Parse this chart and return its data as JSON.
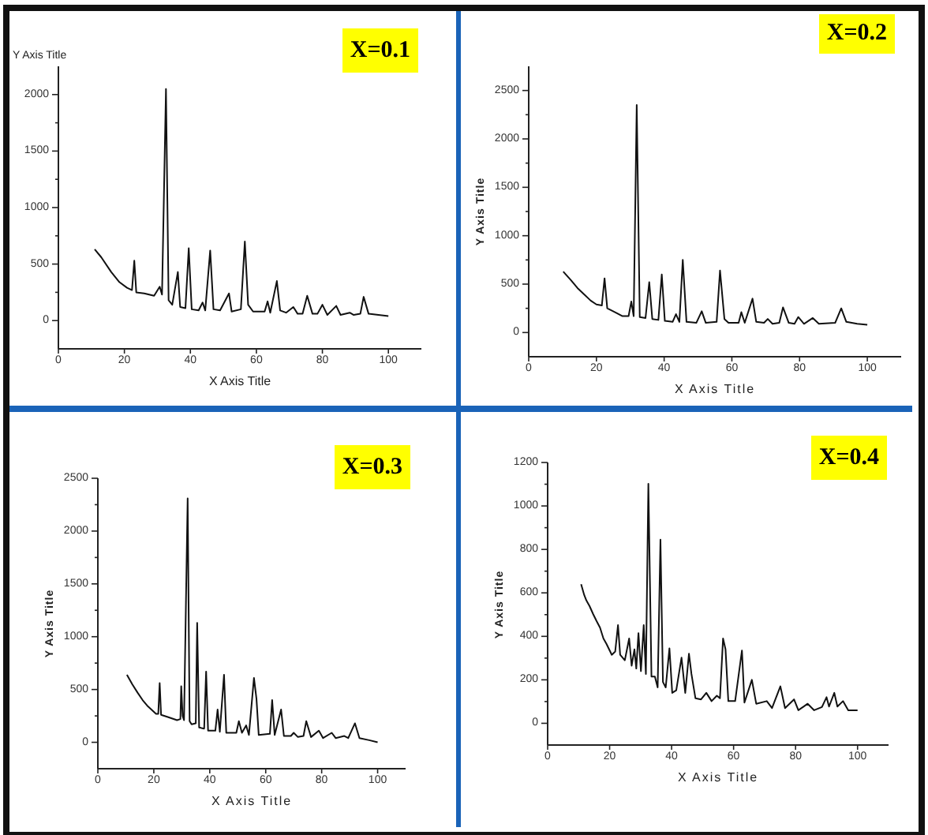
{
  "chart_data": [
    {
      "type": "line",
      "title": "X=0.1",
      "xlabel": "X Axis Title",
      "ylabel": "Y Axis Title",
      "color": "#111111",
      "x": [
        11,
        13,
        16,
        18.5,
        20.8,
        22.3,
        23,
        23.6,
        26,
        29,
        30.7,
        31.4,
        32.6,
        33.4,
        34.5,
        36.2,
        36.9,
        38.5,
        39.5,
        40.4,
        42.5,
        43.7,
        44.5,
        46,
        47,
        49,
        51.7,
        52.5,
        55.3,
        56.5,
        57.5,
        59,
        62.5,
        63.4,
        64.2,
        66.2,
        67.2,
        69,
        71.2,
        72.5,
        74,
        75.4,
        77,
        78.5,
        80,
        81.5,
        84.2,
        85.5,
        88.3,
        89.5,
        91.5,
        92.5,
        94,
        97,
        100
      ],
      "values": [
        630,
        560,
        430,
        340,
        290,
        270,
        530,
        250,
        240,
        220,
        300,
        230,
        2050,
        180,
        140,
        430,
        120,
        110,
        640,
        100,
        90,
        160,
        90,
        620,
        100,
        90,
        240,
        80,
        100,
        700,
        140,
        80,
        80,
        170,
        70,
        350,
        90,
        70,
        120,
        60,
        60,
        220,
        60,
        60,
        140,
        50,
        130,
        50,
        70,
        50,
        60,
        210,
        60,
        50,
        40
      ],
      "xlim": [
        0,
        110
      ],
      "xticks": [
        0,
        20,
        40,
        60,
        80,
        100
      ],
      "ylim": [
        -250,
        2250
      ],
      "yticks": [
        0,
        {
          "value": 250,
          "label": null
        },
        500,
        {
          "value": 750,
          "label": null
        },
        1000,
        {
          "value": 1250,
          "label": null
        },
        1500,
        {
          "value": 1750,
          "label": null
        },
        2000
      ]
    },
    {
      "type": "line",
      "title": "X=0.2",
      "xlabel": "X Axis Title",
      "ylabel": "Y Axis Title",
      "color": "#111111",
      "x": [
        10.2,
        12.5,
        14.4,
        16.5,
        18.3,
        20,
        21.6,
        22.4,
        23.2,
        25.5,
        27.6,
        29.5,
        30.3,
        31,
        31.9,
        32.8,
        34.5,
        35.6,
        36.5,
        38.3,
        39.3,
        40.2,
        42.5,
        43.5,
        44.5,
        45.5,
        46.6,
        49.5,
        51.1,
        52.3,
        55.5,
        56.5,
        57.8,
        59,
        62,
        62.8,
        63.8,
        66.1,
        67.2,
        69.5,
        70.6,
        72,
        74,
        75.1,
        76.8,
        78.5,
        79.6,
        81.3,
        83.9,
        85.7,
        90.5,
        92.3,
        93.8,
        97,
        100
      ],
      "values": [
        630,
        540,
        460,
        390,
        330,
        290,
        280,
        560,
        250,
        210,
        170,
        170,
        320,
        170,
        2350,
        160,
        150,
        520,
        140,
        130,
        600,
        120,
        110,
        190,
        110,
        750,
        110,
        100,
        220,
        100,
        110,
        640,
        140,
        100,
        100,
        210,
        100,
        350,
        110,
        100,
        140,
        90,
        100,
        260,
        100,
        90,
        160,
        90,
        150,
        90,
        100,
        250,
        110,
        90,
        80
      ],
      "xlim": [
        0,
        110
      ],
      "xticks": [
        0,
        20,
        40,
        60,
        80,
        100
      ],
      "ylim": [
        -250,
        2750
      ],
      "yticks": [
        0,
        {
          "value": 250,
          "label": null
        },
        500,
        {
          "value": 750,
          "label": null
        },
        1000,
        {
          "value": 1250,
          "label": null
        },
        1500,
        {
          "value": 1750,
          "label": null
        },
        2000,
        {
          "value": 2250,
          "label": null
        },
        2500
      ]
    },
    {
      "type": "line",
      "title": "X=0.3",
      "xlabel": "X Axis Title",
      "ylabel": "Y Axis Title",
      "color": "#111111",
      "x": [
        10.4,
        12.3,
        14.2,
        16,
        17.9,
        20.8,
        21.6,
        22.1,
        22.6,
        25,
        28.3,
        29.5,
        29.8,
        30.3,
        30.8,
        32.1,
        32.8,
        33.5,
        35,
        35.5,
        36.2,
        38,
        38.7,
        39.4,
        42,
        42.8,
        43.6,
        45.1,
        45.9,
        49.5,
        50.4,
        51.5,
        53,
        54,
        55.8,
        56.7,
        57.5,
        61.5,
        62.3,
        63.2,
        65.5,
        66.5,
        69,
        70,
        71.5,
        73.5,
        74.5,
        76.2,
        79,
        80.5,
        83.6,
        85,
        88.1,
        89.5,
        91.9,
        93.5,
        97,
        100
      ],
      "values": [
        640,
        550,
        470,
        400,
        340,
        270,
        270,
        560,
        260,
        240,
        210,
        220,
        530,
        250,
        210,
        2310,
        200,
        170,
        180,
        1130,
        140,
        130,
        670,
        110,
        110,
        310,
        100,
        640,
        90,
        90,
        200,
        90,
        160,
        70,
        610,
        410,
        70,
        80,
        400,
        70,
        310,
        60,
        60,
        90,
        50,
        60,
        200,
        50,
        110,
        40,
        90,
        40,
        60,
        40,
        180,
        40,
        20,
        0
      ],
      "xlim": [
        0,
        110
      ],
      "xticks": [
        0,
        20,
        40,
        60,
        80,
        100
      ],
      "ylim": [
        -250,
        2500
      ],
      "yticks": [
        0,
        {
          "value": 250,
          "label": null
        },
        500,
        {
          "value": 750,
          "label": null
        },
        1000,
        {
          "value": 1250,
          "label": null
        },
        1500,
        {
          "value": 1750,
          "label": null
        },
        2000,
        {
          "value": 2250,
          "label": null
        },
        2500
      ]
    },
    {
      "type": "line",
      "title": "X=0.4",
      "xlabel": "X Axis Title",
      "ylabel": "Y Axis Title",
      "color": "#111111",
      "x": [
        10.8,
        11.8,
        12.5,
        13.5,
        14.7,
        15.8,
        16.9,
        18,
        19,
        20.7,
        21.8,
        22.7,
        23.4,
        24.9,
        26.3,
        27.1,
        28,
        28.6,
        29.3,
        30.1,
        31,
        31.7,
        32.5,
        33.5,
        34.6,
        35.5,
        36.4,
        37.2,
        38.1,
        39.3,
        40.2,
        41.5,
        43.2,
        44.4,
        45.6,
        46.4,
        47.7,
        49.5,
        51.2,
        52.9,
        54.6,
        55.6,
        56.6,
        57.4,
        58.3,
        60.5,
        62.7,
        63.5,
        65.9,
        67.3,
        70.7,
        72.4,
        75.1,
        76.6,
        79.5,
        80.9,
        83.9,
        86,
        88.5,
        90,
        90.8,
        92.5,
        93.5,
        95.3,
        97,
        100
      ],
      "values": [
        640,
        590,
        565,
        540,
        502,
        470,
        440,
        390,
        365,
        315,
        330,
        452,
        315,
        290,
        390,
        265,
        340,
        252,
        415,
        240,
        452,
        227,
        1102,
        215,
        215,
        165,
        845,
        190,
        165,
        345,
        140,
        152,
        302,
        140,
        320,
        227,
        115,
        110,
        140,
        102,
        127,
        115,
        390,
        340,
        102,
        102,
        335,
        95,
        200,
        90,
        102,
        70,
        170,
        70,
        110,
        60,
        90,
        60,
        75,
        120,
        77,
        140,
        77,
        102,
        60,
        60
      ],
      "xlim": [
        0,
        110
      ],
      "xticks": [
        0,
        20,
        40,
        60,
        80,
        100
      ],
      "ylim": [
        -100,
        1200
      ],
      "yticks": [
        0,
        {
          "value": 100,
          "label": null
        },
        200,
        {
          "value": 300,
          "label": null
        },
        400,
        {
          "value": 500,
          "label": null
        },
        600,
        {
          "value": 700,
          "label": null
        },
        800,
        {
          "value": 900,
          "label": null
        },
        1000,
        {
          "value": 1100,
          "label": null
        },
        1200
      ]
    }
  ]
}
